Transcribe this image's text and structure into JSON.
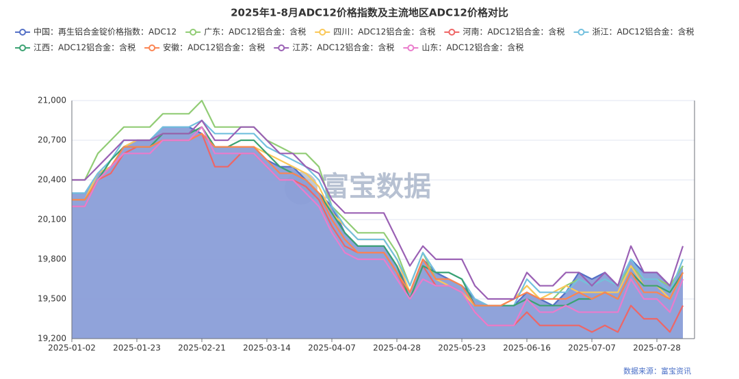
{
  "chart_data": {
    "type": "line",
    "title": "2025年1-8月ADC12价格指数及主流地区ADC12价格对比",
    "watermark": "富宝数据",
    "source": "数据来源：富宝资讯",
    "categories": [
      "2025-01-02",
      null,
      null,
      null,
      null,
      "2025-01-23",
      null,
      null,
      null,
      null,
      "2025-02-21",
      null,
      null,
      null,
      null,
      "2025-03-14",
      null,
      null,
      null,
      null,
      "2025-04-07",
      null,
      null,
      null,
      null,
      "2025-04-28",
      null,
      null,
      null,
      null,
      "2025-05-23",
      null,
      null,
      null,
      null,
      "2025-06-16",
      null,
      null,
      null,
      null,
      "2025-07-07",
      null,
      null,
      null,
      null,
      "2025-07-28",
      null,
      null
    ],
    "ylim": [
      19200,
      21000
    ],
    "yticks": [
      {
        "value": 19200,
        "label": "19,200"
      },
      {
        "value": 19500,
        "label": "19,500"
      },
      {
        "value": 19800,
        "label": "19,800"
      },
      {
        "value": 20100,
        "label": "20,100"
      },
      {
        "value": 20400,
        "label": "20,400"
      },
      {
        "value": 20700,
        "label": "20,700"
      },
      {
        "value": 21000,
        "label": "21,000"
      }
    ],
    "grid": true,
    "legend": "top",
    "series": [
      {
        "name": "中国：再生铝合金锭价格指数：ADC12",
        "color": "#5470c6",
        "area": true,
        "area_color": "#8a9ed8",
        "values": [
          20300,
          20300,
          20450,
          20500,
          20650,
          20700,
          20700,
          20800,
          20800,
          20800,
          20750,
          20650,
          20650,
          20650,
          20650,
          20550,
          20500,
          20500,
          20400,
          20300,
          20200,
          20000,
          19900,
          19900,
          19900,
          19750,
          19550,
          19800,
          19700,
          19650,
          19600,
          19500,
          19450,
          19450,
          19450,
          19550,
          19500,
          19450,
          19550,
          19700,
          19650,
          19700,
          19600,
          19800,
          19700,
          19700,
          19600,
          19750
        ]
      },
      {
        "name": "广东：ADC12铝合金：含税",
        "color": "#91cc75",
        "values": [
          20400,
          20400,
          20600,
          20700,
          20800,
          20800,
          20800,
          20900,
          20900,
          20900,
          21000,
          20800,
          20800,
          20800,
          20800,
          20700,
          20650,
          20600,
          20600,
          20500,
          20200,
          20100,
          20000,
          20000,
          20000,
          19850,
          19600,
          19850,
          19650,
          19650,
          19600,
          19450,
          19450,
          19450,
          19500,
          19600,
          19500,
          19500,
          19600,
          19650,
          19600,
          19650,
          19600,
          19750,
          19650,
          19650,
          19600,
          19750
        ]
      },
      {
        "name": "四川：ADC12铝合金：含税",
        "color": "#fac858",
        "values": [
          20250,
          20250,
          20450,
          20500,
          20650,
          20700,
          20700,
          20750,
          20750,
          20750,
          20800,
          20650,
          20650,
          20650,
          20650,
          20600,
          20550,
          20500,
          20450,
          20350,
          20150,
          20050,
          19950,
          19950,
          19950,
          19800,
          19550,
          19800,
          19650,
          19600,
          19550,
          19450,
          19450,
          19450,
          19500,
          19600,
          19500,
          19550,
          19600,
          19550,
          19550,
          19550,
          19550,
          19750,
          19600,
          19600,
          19500,
          19700
        ]
      },
      {
        "name": "河南：ADC12铝合金：含税",
        "color": "#ee6666",
        "values": [
          20200,
          20200,
          20400,
          20450,
          20600,
          20650,
          20650,
          20700,
          20700,
          20700,
          20750,
          20500,
          20500,
          20600,
          20600,
          20500,
          20400,
          20400,
          20350,
          20250,
          20050,
          19900,
          19850,
          19850,
          19850,
          19700,
          19500,
          19750,
          19600,
          19600,
          19550,
          19400,
          19300,
          19300,
          19300,
          19400,
          19300,
          19300,
          19300,
          19300,
          19250,
          19300,
          19250,
          19450,
          19350,
          19350,
          19250,
          19450
        ]
      },
      {
        "name": "浙江：ADC12铝合金：含税",
        "color": "#73c0de",
        "values": [
          20300,
          20300,
          20450,
          20550,
          20700,
          20700,
          20700,
          20800,
          20800,
          20800,
          20850,
          20750,
          20750,
          20750,
          20750,
          20650,
          20600,
          20550,
          20500,
          20400,
          20200,
          20050,
          19950,
          19950,
          19950,
          19800,
          19600,
          19850,
          19700,
          19700,
          19650,
          19500,
          19450,
          19450,
          19450,
          19650,
          19550,
          19550,
          19550,
          19650,
          19600,
          19650,
          19600,
          19800,
          19650,
          19650,
          19550,
          19800
        ]
      },
      {
        "name": "江西：ADC12铝合金：含税",
        "color": "#3ba272",
        "values": [
          20250,
          20250,
          20400,
          20550,
          20650,
          20650,
          20650,
          20750,
          20750,
          20750,
          20800,
          20650,
          20650,
          20700,
          20700,
          20600,
          20500,
          20450,
          20400,
          20300,
          20150,
          20000,
          19900,
          19900,
          19900,
          19750,
          19500,
          19750,
          19700,
          19700,
          19650,
          19450,
          19450,
          19450,
          19450,
          19500,
          19450,
          19450,
          19450,
          19500,
          19500,
          19550,
          19500,
          19700,
          19600,
          19600,
          19550,
          19700
        ]
      },
      {
        "name": "安徽：ADC12铝合金：含税",
        "color": "#fc8452",
        "values": [
          20250,
          20250,
          20400,
          20500,
          20650,
          20650,
          20650,
          20700,
          20700,
          20700,
          20750,
          20650,
          20650,
          20650,
          20650,
          20550,
          20450,
          20450,
          20400,
          20300,
          20100,
          19950,
          19850,
          19850,
          19850,
          19700,
          19550,
          19800,
          19650,
          19650,
          19600,
          19450,
          19450,
          19450,
          19500,
          19550,
          19500,
          19500,
          19500,
          19550,
          19500,
          19550,
          19500,
          19700,
          19550,
          19550,
          19500,
          19700
        ]
      },
      {
        "name": "江苏：ADC12铝合金：含税",
        "color": "#9a60b4",
        "values": [
          20400,
          20400,
          20500,
          20600,
          20700,
          20700,
          20700,
          20750,
          20750,
          20750,
          20850,
          20700,
          20700,
          20800,
          20800,
          20700,
          20600,
          20600,
          20500,
          20450,
          20250,
          20150,
          20150,
          20150,
          20150,
          19950,
          19750,
          19900,
          19800,
          19800,
          19800,
          19600,
          19500,
          19500,
          19500,
          19700,
          19600,
          19600,
          19700,
          19700,
          19600,
          19700,
          19600,
          19900,
          19700,
          19700,
          19600,
          19900
        ]
      },
      {
        "name": "山东：ADC12铝合金：含税",
        "color": "#ea7ccc",
        "values": [
          20200,
          20200,
          20400,
          20500,
          20600,
          20600,
          20600,
          20700,
          20700,
          20700,
          20800,
          20600,
          20600,
          20600,
          20600,
          20500,
          20400,
          20400,
          20300,
          20200,
          20000,
          19850,
          19800,
          19800,
          19800,
          19650,
          19500,
          19650,
          19600,
          19600,
          19550,
          19400,
          19300,
          19300,
          19300,
          19500,
          19400,
          19400,
          19450,
          19400,
          19400,
          19400,
          19400,
          19650,
          19500,
          19500,
          19400,
          19650
        ]
      }
    ]
  }
}
